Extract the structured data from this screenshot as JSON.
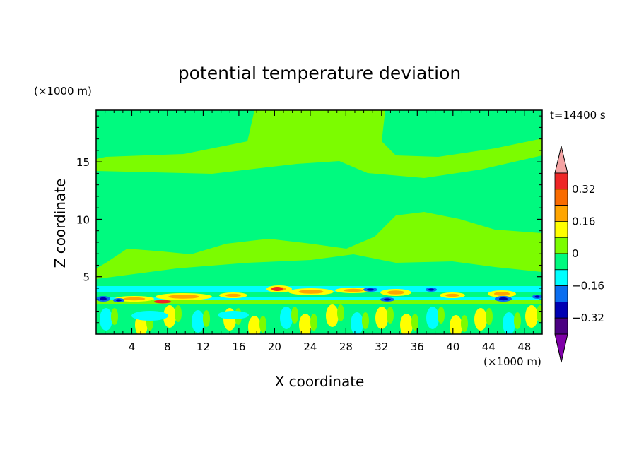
{
  "chart_data": {
    "type": "heatmap",
    "title": "potential temperature deviation",
    "time_label": "t=14400 s",
    "xlabel": "X coordinate",
    "ylabel": "Z coordinate",
    "x_unit": "(×1000 m)",
    "y_unit": "(×1000 m)",
    "xlim": [
      0,
      50
    ],
    "ylim": [
      0,
      19.5
    ],
    "xticks": [
      4,
      8,
      12,
      16,
      20,
      24,
      28,
      32,
      36,
      40,
      44,
      48
    ],
    "yticks": [
      5,
      10,
      15
    ],
    "colorbar": {
      "levels": [
        -0.4,
        -0.32,
        -0.24,
        -0.16,
        -0.08,
        0,
        0.08,
        0.16,
        0.24,
        0.32,
        0.4
      ],
      "labels": [
        "0.32",
        "0.16",
        "0",
        "−0.16",
        "−0.32"
      ],
      "label_values": [
        0.32,
        0.16,
        0,
        -0.16,
        -0.32
      ],
      "colors_top_to_bottom": [
        "#f4a3a3",
        "#ee2626",
        "#f96b00",
        "#ffa500",
        "#ffff00",
        "#7cfc00",
        "#00fa7f",
        "#00ffff",
        "#0a6ef0",
        "#0000b3",
        "#4b0082",
        "#7f00a8"
      ],
      "extend": "both"
    },
    "colors": {
      "background_band": "#7cfc00",
      "near_zero_negative": "#00fa7f",
      "cyan": "#00ffff",
      "blue": "#0a6ef0",
      "navy": "#0000b3",
      "yellow": "#ffff00",
      "orange": "#ffa500",
      "red": "#ee2626"
    }
  }
}
